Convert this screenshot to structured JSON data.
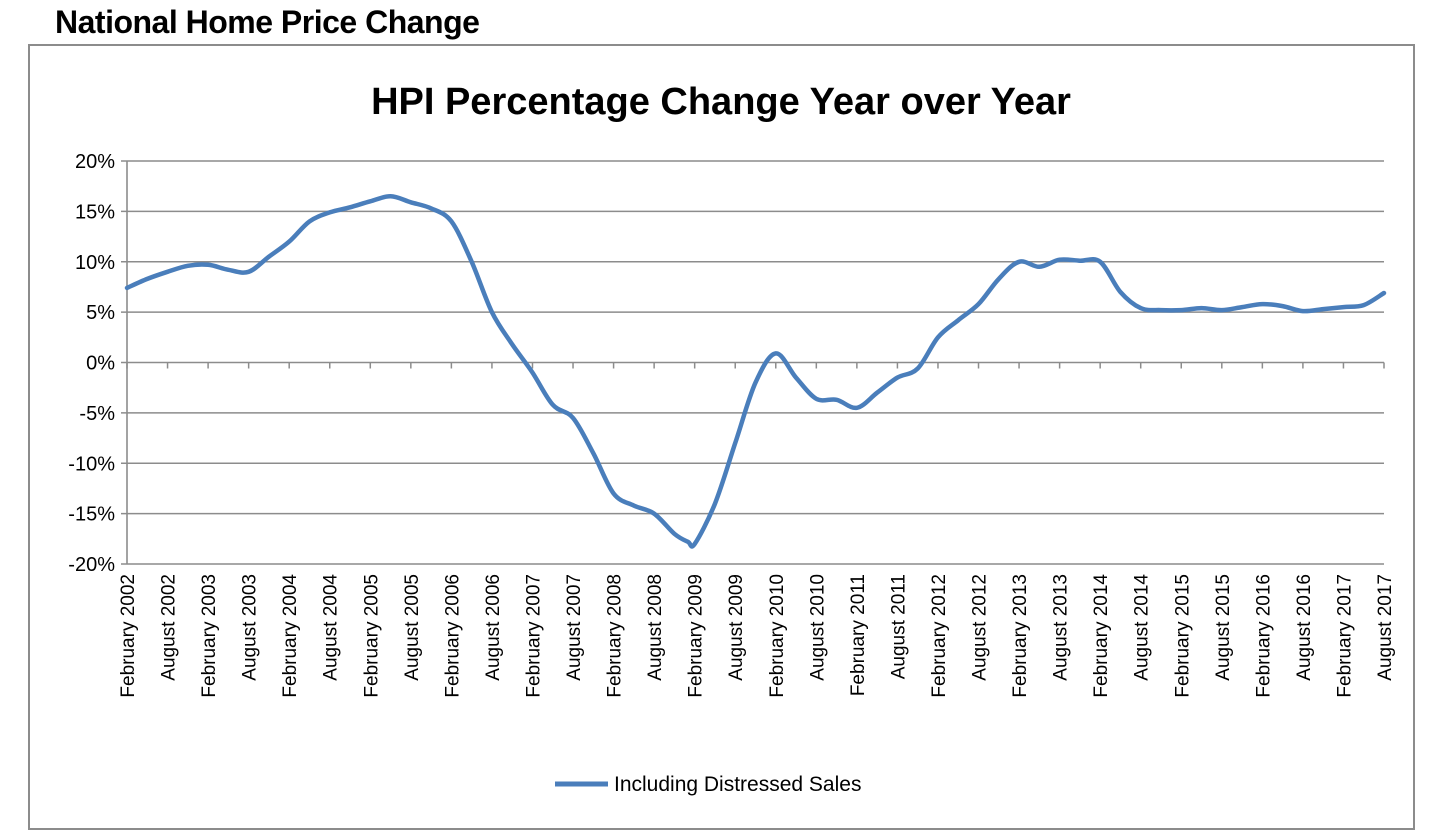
{
  "page_heading": "National Home Price Change",
  "chart_data": {
    "type": "line",
    "title": "HPI Percentage Change Year over Year",
    "xlabel": "",
    "ylabel": "",
    "x_tick_labels": [
      "February 2002",
      "August 2002",
      "February 2003",
      "August 2003",
      "February 2004",
      "August 2004",
      "February 2005",
      "August 2005",
      "February 2006",
      "August 2006",
      "February 2007",
      "August 2007",
      "February 2008",
      "August 2008",
      "February 2009",
      "August 2009",
      "February 2010",
      "August 2010",
      "February 2011",
      "August 2011",
      "February 2012",
      "August 2012",
      "February 2013",
      "August 2013",
      "February 2014",
      "August 2014",
      "February 2015",
      "August 2015",
      "February 2016",
      "August 2016",
      "February 2017",
      "August 2017"
    ],
    "y_ticks": [
      20,
      15,
      10,
      5,
      0,
      -5,
      -10,
      -15,
      -20
    ],
    "y_tick_labels": [
      "20%",
      "15%",
      "10%",
      "5%",
      "0%",
      "-5%",
      "-10%",
      "-15%",
      "-20%"
    ],
    "ylim": [
      -20,
      20
    ],
    "grid": true,
    "legend_position": "bottom",
    "series": [
      {
        "name": "Including Distressed Sales",
        "color": "#4a7ebb",
        "x": [
          "2002-02",
          "2002-05",
          "2002-08",
          "2002-11",
          "2003-02",
          "2003-05",
          "2003-08",
          "2003-11",
          "2004-02",
          "2004-05",
          "2004-08",
          "2004-11",
          "2005-02",
          "2005-05",
          "2005-08",
          "2005-11",
          "2006-02",
          "2006-05",
          "2006-08",
          "2006-11",
          "2007-02",
          "2007-05",
          "2007-08",
          "2007-11",
          "2008-02",
          "2008-05",
          "2008-08",
          "2008-11",
          "2009-01",
          "2009-02",
          "2009-05",
          "2009-08",
          "2009-11",
          "2010-02",
          "2010-05",
          "2010-08",
          "2010-11",
          "2011-02",
          "2011-05",
          "2011-08",
          "2011-11",
          "2012-02",
          "2012-05",
          "2012-08",
          "2012-11",
          "2013-02",
          "2013-05",
          "2013-08",
          "2013-11",
          "2014-02",
          "2014-05",
          "2014-08",
          "2014-11",
          "2015-02",
          "2015-05",
          "2015-08",
          "2015-11",
          "2016-02",
          "2016-05",
          "2016-08",
          "2016-11",
          "2017-02",
          "2017-05",
          "2017-08"
        ],
        "values": [
          7.4,
          8.3,
          9.0,
          9.6,
          9.7,
          9.2,
          9.0,
          10.5,
          12.0,
          14.0,
          14.9,
          15.4,
          16.0,
          16.5,
          15.9,
          15.3,
          14.0,
          10.0,
          5.0,
          1.8,
          -1.0,
          -4.2,
          -5.5,
          -9.0,
          -13.0,
          -14.2,
          -15.0,
          -17.0,
          -17.8,
          -18.0,
          -14.0,
          -8.0,
          -2.0,
          0.9,
          -1.5,
          -3.6,
          -3.7,
          -4.5,
          -3.0,
          -1.5,
          -0.6,
          2.5,
          4.2,
          5.8,
          8.3,
          10.0,
          9.5,
          10.2,
          10.1,
          10.0,
          7.0,
          5.4,
          5.2,
          5.2,
          5.4,
          5.2,
          5.5,
          5.8,
          5.6,
          5.1,
          5.3,
          5.5,
          5.7,
          6.9
        ]
      }
    ]
  }
}
